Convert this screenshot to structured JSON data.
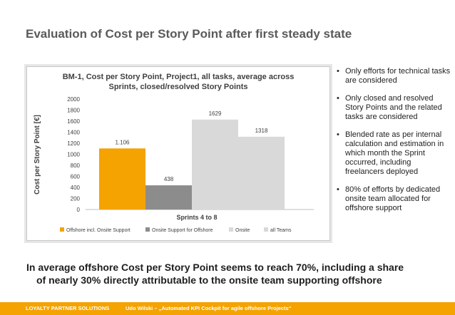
{
  "slide": {
    "title": "Evaluation of Cost per Story Point after first steady state",
    "bullets": [
      "Only efforts for technical tasks are considered",
      "Only closed and resolved Story Points and the related tasks are considered",
      "Blended rate as per internal calculation and estimation in which month the Sprint occurred, including freelancers deployed",
      "80% of efforts by dedicated onsite team allocated for offshore support"
    ],
    "summary_line1": "In average offshore Cost per Story Point seems to reach 70%, including a share",
    "summary_line2": "of nearly 30% directly attributable to the onsite team supporting offshore",
    "footer_left": "LOYALTY PARTNER SOLUTIONS",
    "footer_right": "Udo Wilski – „Automated KPI Cockpit for agile offshore Projects“"
  },
  "colors": {
    "accent": "#f4a300",
    "offshore": "#f4a300",
    "onsite_support": "#8c8c8c",
    "onsite": "#d9d9d9",
    "all_teams": "#d9d9d9"
  },
  "chart_data": {
    "type": "bar",
    "title_line1": "BM-1, Cost per Story Point, Project1, all tasks, average across",
    "title_line2": "Sprints, closed/resolved Story Points",
    "ylabel": "Cost per Story Point [€]",
    "xlabel": "Sprints 4 to 8",
    "ylim": [
      0,
      2000
    ],
    "yticks": [
      "0",
      "200",
      "400",
      "600",
      "800",
      "1000",
      "1200",
      "1400",
      "1600",
      "1800",
      "2000"
    ],
    "grid": false,
    "legend_position": "bottom",
    "series": [
      {
        "name": "Offshore incl. Onsite Support",
        "value": 1106,
        "label": "1.106",
        "color": "#f4a300"
      },
      {
        "name": "Onsite Support for Offshore",
        "value": 438,
        "label": "438",
        "color": "#8c8c8c"
      },
      {
        "name": "Onsite",
        "value": 1629,
        "label": "1629",
        "color": "#d9d9d9"
      },
      {
        "name": "all Teams",
        "value": 1318,
        "label": "1318",
        "color": "#d9d9d9"
      }
    ]
  }
}
